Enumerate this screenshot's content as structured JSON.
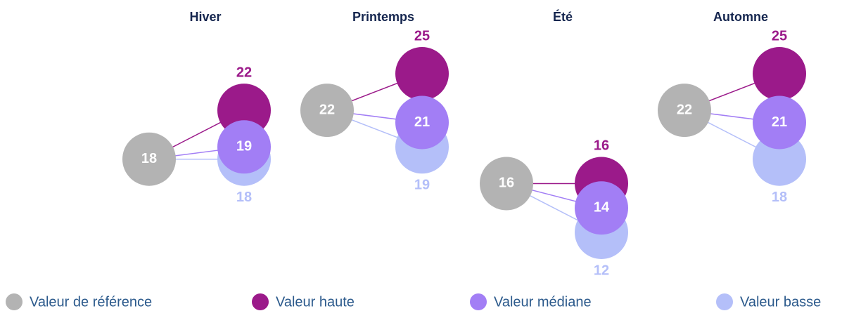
{
  "chart_data": {
    "type": "dot",
    "categories": [
      "Hiver",
      "Printemps",
      "Été",
      "Automne"
    ],
    "series": [
      {
        "name": "Valeur de référence",
        "color": "#b3b3b3",
        "values": [
          18,
          22,
          16,
          22
        ]
      },
      {
        "name": "Valeur haute",
        "color": "#9b1a8a",
        "values": [
          22,
          25,
          16,
          25
        ]
      },
      {
        "name": "Valeur médiane",
        "color": "#a27ef5",
        "values": [
          19,
          21,
          14,
          21
        ]
      },
      {
        "name": "Valeur basse",
        "color": "#b4bff9",
        "values": [
          18,
          19,
          12,
          18
        ]
      }
    ]
  }
}
